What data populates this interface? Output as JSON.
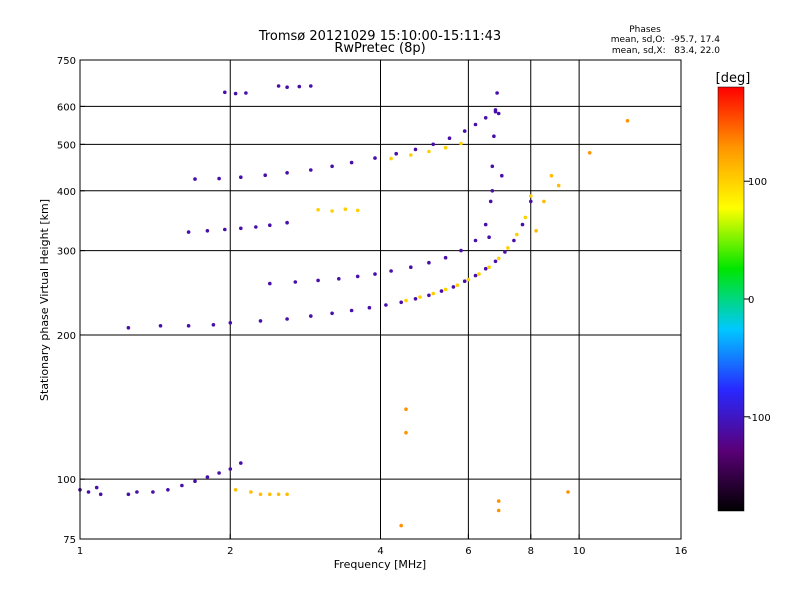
{
  "chart_data": {
    "type": "scatter",
    "title": "Tromsø 20121029 15:10:00-15:11:43",
    "subtitle": "RwPretec (8p)",
    "xlabel": "Frequency [MHz]",
    "ylabel": "Stationary phase Virtual Height [km]",
    "x_scale": "log",
    "y_scale": "log",
    "xlim": [
      1,
      16
    ],
    "ylim": [
      75,
      750
    ],
    "x_ticks": [
      1,
      2,
      4,
      6,
      8,
      10,
      16
    ],
    "y_ticks": [
      75,
      100,
      200,
      300,
      400,
      500,
      600,
      750
    ],
    "x_grid": [
      2,
      4,
      6,
      8,
      10
    ],
    "y_grid": [
      100,
      200,
      300,
      400,
      500,
      600
    ],
    "grid": true,
    "colorbar": {
      "label": "[deg]",
      "range": [
        -180,
        180
      ],
      "ticks": [
        100,
        0,
        -100
      ],
      "colors": [
        "#000000",
        "#5a0078",
        "#2828ff",
        "#00c8ff",
        "#00e600",
        "#ffff00",
        "#ff9600",
        "#ff0000"
      ]
    },
    "phase_stats": {
      "header": "Phases",
      "o_line": "mean, sd,O:  -95.7, 17.4",
      "x_line": "mean, sd,X:   83.4, 22.0"
    },
    "series": [
      {
        "x": [
          1.0,
          1.04,
          1.08,
          1.1
        ],
        "y": [
          95,
          94,
          96,
          93
        ],
        "phase": -110
      },
      {
        "x": [
          1.25,
          1.3,
          1.4,
          1.5,
          1.6,
          1.7,
          1.8,
          1.9,
          2.0,
          2.1
        ],
        "y": [
          93,
          94,
          94,
          95,
          97,
          99,
          101,
          103,
          105,
          108
        ],
        "phase": -110
      },
      {
        "x": [
          2.05,
          2.2,
          2.3,
          2.4,
          2.5,
          2.6
        ],
        "y": [
          95,
          94,
          93,
          93,
          93,
          93
        ],
        "phase": 110
      },
      {
        "x": [
          1.25,
          1.45,
          1.65,
          1.85,
          2.0,
          2.3,
          2.6,
          2.9,
          3.2,
          3.5,
          3.8,
          4.1,
          4.4,
          4.7,
          5.0,
          5.3,
          5.6,
          5.9,
          6.2,
          6.5,
          6.8,
          7.1,
          7.4,
          7.7,
          8.0
        ],
        "y": [
          207,
          209,
          209,
          210,
          212,
          214,
          216,
          219,
          222,
          225,
          228,
          231,
          234,
          238,
          242,
          247,
          252,
          259,
          266,
          275,
          285,
          298,
          315,
          340,
          380
        ],
        "phase": -110
      },
      {
        "x": [
          4.5,
          4.8,
          5.1,
          5.4,
          5.7,
          6.0,
          6.3,
          6.6,
          6.9,
          7.2,
          7.5,
          7.8,
          8.0
        ],
        "y": [
          236,
          240,
          244,
          249,
          254,
          261,
          268,
          277,
          289,
          304,
          324,
          352,
          390
        ],
        "phase": 100
      },
      {
        "x": [
          2.4,
          2.7,
          3.0,
          3.3,
          3.6,
          3.9,
          4.2,
          4.6,
          5.0,
          5.4,
          5.8,
          6.2,
          6.5,
          6.7
        ],
        "y": [
          256,
          258,
          260,
          262,
          265,
          268,
          272,
          277,
          283,
          290,
          300,
          315,
          340,
          400
        ],
        "phase": -110
      },
      {
        "x": [
          1.65,
          1.8,
          1.95,
          2.1,
          2.25,
          2.4,
          2.6
        ],
        "y": [
          328,
          330,
          332,
          334,
          336,
          339,
          343
        ],
        "phase": -110
      },
      {
        "x": [
          1.7,
          1.9,
          2.1,
          2.35,
          2.6,
          2.9,
          3.2,
          3.5,
          3.9,
          4.3,
          4.7,
          5.1,
          5.5,
          5.9,
          6.2,
          6.5,
          6.8
        ],
        "y": [
          423,
          424,
          427,
          431,
          436,
          442,
          450,
          458,
          468,
          478,
          488,
          500,
          515,
          533,
          550,
          568,
          585
        ],
        "phase": -110
      },
      {
        "x": [
          4.2,
          4.6,
          5.0,
          5.4,
          5.8
        ],
        "y": [
          467,
          475,
          483,
          492,
          502
        ],
        "phase": 100
      },
      {
        "x": [
          1.95,
          2.05,
          2.15,
          2.5,
          2.6,
          2.75,
          2.9
        ],
        "y": [
          642,
          638,
          640,
          662,
          658,
          660,
          662
        ],
        "phase": -110
      },
      {
        "x": [
          6.6,
          6.65,
          6.7,
          6.75,
          6.8,
          6.85,
          6.9,
          7.0
        ],
        "y": [
          320,
          380,
          450,
          520,
          590,
          640,
          580,
          430
        ],
        "phase": -110
      },
      {
        "x": [
          3.0,
          3.2,
          3.4,
          3.6
        ],
        "y": [
          365,
          363,
          366,
          364
        ],
        "phase": 100
      },
      {
        "x": [
          8.2,
          8.5,
          8.8,
          9.1
        ],
        "y": [
          330,
          380,
          430,
          410
        ],
        "phase": 110
      },
      {
        "x": [
          4.4,
          4.5,
          4.5,
          6.9,
          6.9,
          9.5,
          12.5,
          10.5
        ],
        "y": [
          80,
          140,
          125,
          90,
          86,
          94,
          560,
          480
        ],
        "phase": 130
      }
    ]
  }
}
